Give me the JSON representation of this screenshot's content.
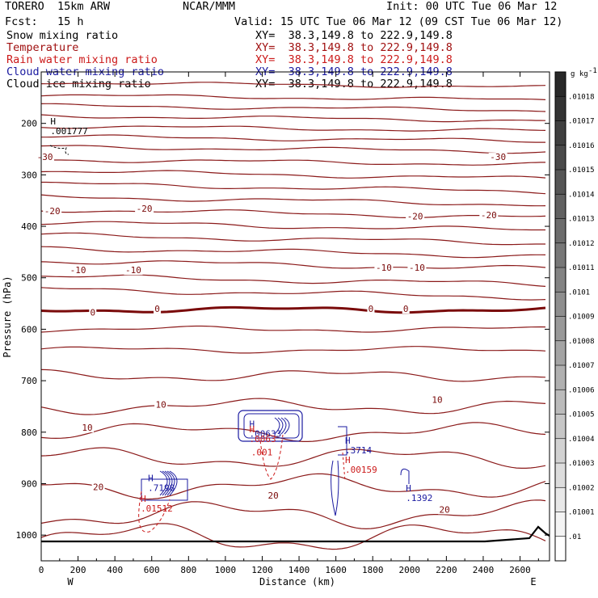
{
  "header": {
    "model": "TORERO  15km ARW",
    "org": "NCAR/MMM",
    "init": "Init: 00 UTC Tue 06 Mar 12",
    "fcst": "Fcst:   15 h",
    "valid": "Valid: 15 UTC Tue 06 Mar 12 (09 CST Tue 06 Mar 12)",
    "fields": [
      {
        "name": "Snow mixing ratio",
        "xy": "XY=  38.3,149.8 to 222.9,149.8",
        "color": "#000000"
      },
      {
        "name": "Temperature",
        "xy": "XY=  38.3,149.8 to 222.9,149.8",
        "color": "#a01010"
      },
      {
        "name": "Rain water mixing ratio",
        "xy": "XY=  38.3,149.8 to 222.9,149.8",
        "color": "#cc1a1a"
      },
      {
        "name": "Cloud water mixing ratio",
        "xy": "XY=  38.3,149.8 to 222.9,149.8",
        "color": "#1a1aa0"
      },
      {
        "name": "Cloud ice mixing ratio",
        "xy": "XY=  38.3,149.8 to 222.9,149.8",
        "color": "#000000"
      }
    ]
  },
  "chart_data": {
    "type": "contour",
    "xlabel": "Distance (km)",
    "ylabel": "Pressure (hPa)",
    "x_ticks": [
      0,
      200,
      400,
      600,
      800,
      1000,
      1200,
      1400,
      1600,
      1800,
      2000,
      2200,
      2400,
      2600
    ],
    "xlim": [
      0,
      2760
    ],
    "y_ticks": [
      200,
      300,
      400,
      500,
      600,
      700,
      800,
      900,
      1000
    ],
    "ylim": [
      1050,
      100
    ],
    "x_end_labels": {
      "left": "W",
      "right": "E"
    },
    "colorbar": {
      "unit": "g kg",
      "unit_exp": "-1",
      "labels": [
        ".01",
        ".01001",
        ".01002",
        ".01003",
        ".01004",
        ".01005",
        ".01006",
        ".01007",
        ".01008",
        ".01009",
        ".0101",
        ".01011",
        ".01012",
        ".01013",
        ".01014",
        ".01015",
        ".01016",
        ".01017",
        ".01018"
      ]
    },
    "temperature_labels": [
      {
        "text": "-30",
        "x": 20,
        "y": 265
      },
      {
        "text": "-30",
        "x": 2480,
        "y": 265
      },
      {
        "text": "-20",
        "x": 60,
        "y": 370
      },
      {
        "text": "-20",
        "x": 560,
        "y": 365
      },
      {
        "text": "-20",
        "x": 2030,
        "y": 380
      },
      {
        "text": "-20",
        "x": 2430,
        "y": 378
      },
      {
        "text": "-10",
        "x": 200,
        "y": 485
      },
      {
        "text": "-10",
        "x": 500,
        "y": 485
      },
      {
        "text": "-10",
        "x": 1860,
        "y": 480
      },
      {
        "text": "-10",
        "x": 2040,
        "y": 480
      },
      {
        "text": "0",
        "x": 280,
        "y": 567
      },
      {
        "text": "0",
        "x": 630,
        "y": 560
      },
      {
        "text": "0",
        "x": 1790,
        "y": 560
      },
      {
        "text": "0",
        "x": 1980,
        "y": 560
      },
      {
        "text": "10",
        "x": 650,
        "y": 746
      },
      {
        "text": "10",
        "x": 2150,
        "y": 737
      },
      {
        "text": "10",
        "x": 250,
        "y": 791
      },
      {
        "text": "20",
        "x": 310,
        "y": 906
      },
      {
        "text": "20",
        "x": 1260,
        "y": 923
      },
      {
        "text": "20",
        "x": 2190,
        "y": 950
      }
    ],
    "extrema_labels": [
      {
        "mark": "H",
        "value": ".001777",
        "x": 50,
        "y": 202,
        "color": "#000000"
      },
      {
        "mark": "H",
        "value": ".00633",
        "x": 1130,
        "y": 790,
        "color": "#1a1aa0"
      },
      {
        "mark": "H",
        "value": ".0063",
        "x": 1130,
        "y": 800,
        "color": "#cc1a1a"
      },
      {
        "mark": ".001",
        "value": "",
        "x": 1140,
        "y": 845,
        "color": "#cc1a1a"
      },
      {
        "mark": "H",
        "value": ".3714",
        "x": 1650,
        "y": 822,
        "color": "#1a1aa0"
      },
      {
        "mark": "H",
        "value": ".00159",
        "x": 1650,
        "y": 860,
        "color": "#cc1a1a"
      },
      {
        "mark": "H",
        "value": ".7198",
        "x": 580,
        "y": 895,
        "color": "#1a1aa0"
      },
      {
        "mark": "H",
        "value": ".01512",
        "x": 540,
        "y": 935,
        "color": "#cc1a1a"
      },
      {
        "mark": "H",
        "value": ".1392",
        "x": 1980,
        "y": 915,
        "color": "#1a1aa0"
      }
    ]
  }
}
